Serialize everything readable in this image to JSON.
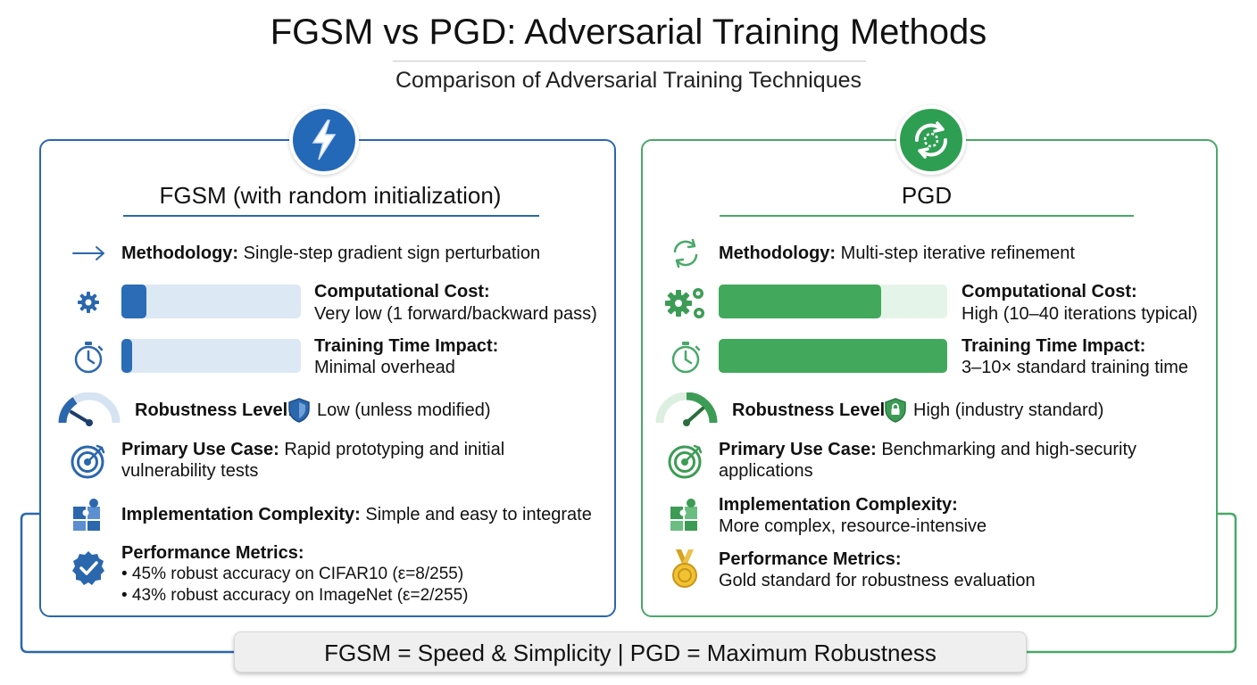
{
  "header": {
    "title": "FGSM vs PGD: Adversarial Training Methods",
    "subtitle": "Comparison of Adversarial Training Techniques"
  },
  "fgsm": {
    "name": "FGSM (with random initialization)",
    "methodology_label": "Methodology:",
    "methodology_value": "Single-step gradient sign perturbation",
    "cost_label": "Computational Cost:",
    "cost_value": "Very low (1 forward/backward pass)",
    "cost_level": 0.14,
    "time_label": "Training Time Impact:",
    "time_value": "Minimal overhead",
    "time_level": 0.06,
    "robustness_label": "Robustness Level:",
    "robustness_value": "Low (unless modified)",
    "usecase_label": "Primary Use Case:",
    "usecase_value_1": "Rapid prototyping and initial",
    "usecase_value_2": "vulnerability tests",
    "complexity_label": "Implementation Complexity:",
    "complexity_value": "Simple and easy to integrate",
    "metrics_label": "Performance Metrics:",
    "metrics_1": "• 45% robust accuracy on CIFAR10 (ε=8/255)",
    "metrics_2": "• 43% robust accuracy on ImageNet (ε=2/255)",
    "color": "#2b67ad"
  },
  "pgd": {
    "name": "PGD",
    "methodology_label": "Methodology:",
    "methodology_value": "Multi-step iterative refinement",
    "cost_label": "Computational Cost:",
    "cost_value": "High (10–40 iterations typical)",
    "cost_level": 0.71,
    "time_label": "Training Time Impact:",
    "time_value": "3–10× standard training time",
    "time_level": 1.0,
    "robustness_label": "Robustness Level:",
    "robustness_value": "High (industry standard)",
    "usecase_label": "Primary Use Case:",
    "usecase_value_1": "Benchmarking and high-security",
    "usecase_value_2": "applications",
    "complexity_label": "Implementation Complexity:",
    "complexity_value": "More complex, resource-intensive",
    "metrics_label": "Performance Metrics:",
    "metrics_1": "Gold standard for robustness evaluation",
    "color": "#4aa868"
  },
  "footer": {
    "summary": "FGSM = Speed & Simplicity | PGD = Maximum Robustness"
  }
}
